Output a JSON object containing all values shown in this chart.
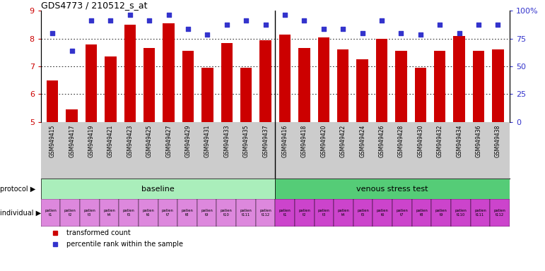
{
  "title": "GDS4773 / 210512_s_at",
  "bar_color": "#cc0000",
  "dot_color": "#3333cc",
  "categories": [
    "GSM949415",
    "GSM949417",
    "GSM949419",
    "GSM949421",
    "GSM949423",
    "GSM949425",
    "GSM949427",
    "GSM949429",
    "GSM949431",
    "GSM949433",
    "GSM949435",
    "GSM949437",
    "GSM949416",
    "GSM949418",
    "GSM949420",
    "GSM949422",
    "GSM949424",
    "GSM949426",
    "GSM949428",
    "GSM949430",
    "GSM949432",
    "GSM949434",
    "GSM949436",
    "GSM949438"
  ],
  "bar_values": [
    6.5,
    5.45,
    7.8,
    7.35,
    8.5,
    7.65,
    8.55,
    7.55,
    6.95,
    7.85,
    6.95,
    7.95,
    8.15,
    7.65,
    8.05,
    7.6,
    7.25,
    8.0,
    7.55,
    6.95,
    7.55,
    8.1,
    7.55,
    7.6
  ],
  "dot_values": [
    8.2,
    7.55,
    8.65,
    8.65,
    8.85,
    8.65,
    8.85,
    8.35,
    8.15,
    8.5,
    8.65,
    8.5,
    8.85,
    8.65,
    8.35,
    8.35,
    8.2,
    8.65,
    8.2,
    8.15,
    8.5,
    8.2,
    8.5,
    8.5
  ],
  "ylim": [
    5,
    9
  ],
  "yticks": [
    5,
    6,
    7,
    8,
    9
  ],
  "right_yticks": [
    0,
    25,
    50,
    75,
    100
  ],
  "right_ylabels": [
    "0",
    "25",
    "50",
    "75",
    "100%"
  ],
  "baseline_samples": 12,
  "total_samples": 24,
  "protocol_baseline": "baseline",
  "protocol_stress": "venous stress test",
  "indiv_labels_b": [
    "patien\nt1",
    "patien\nt2",
    "patien\nt3",
    "patien\nt4",
    "patien\nt5",
    "patien\nt6",
    "patien\nt7",
    "patien\nt8",
    "patien\nt9",
    "patien\nt10",
    "patien\nt111",
    "patien\nt112"
  ],
  "indiv_labels_s": [
    "patien\nt1",
    "patien\nt2",
    "patien\nt3",
    "patien\nt4",
    "patien\nt5",
    "patien\nt6",
    "patien\nt7",
    "patien\nt8",
    "patien\nt9",
    "patien\nt110",
    "patien\nt111",
    "patien\nt112"
  ],
  "protocol_baseline_color": "#aaeebb",
  "protocol_stress_color": "#55cc77",
  "individual_baseline_color": "#dd88dd",
  "individual_stress_color": "#cc44cc",
  "xticklabel_bg": "#cccccc",
  "legend_bar_label": "transformed count",
  "legend_dot_label": "percentile rank within the sample"
}
